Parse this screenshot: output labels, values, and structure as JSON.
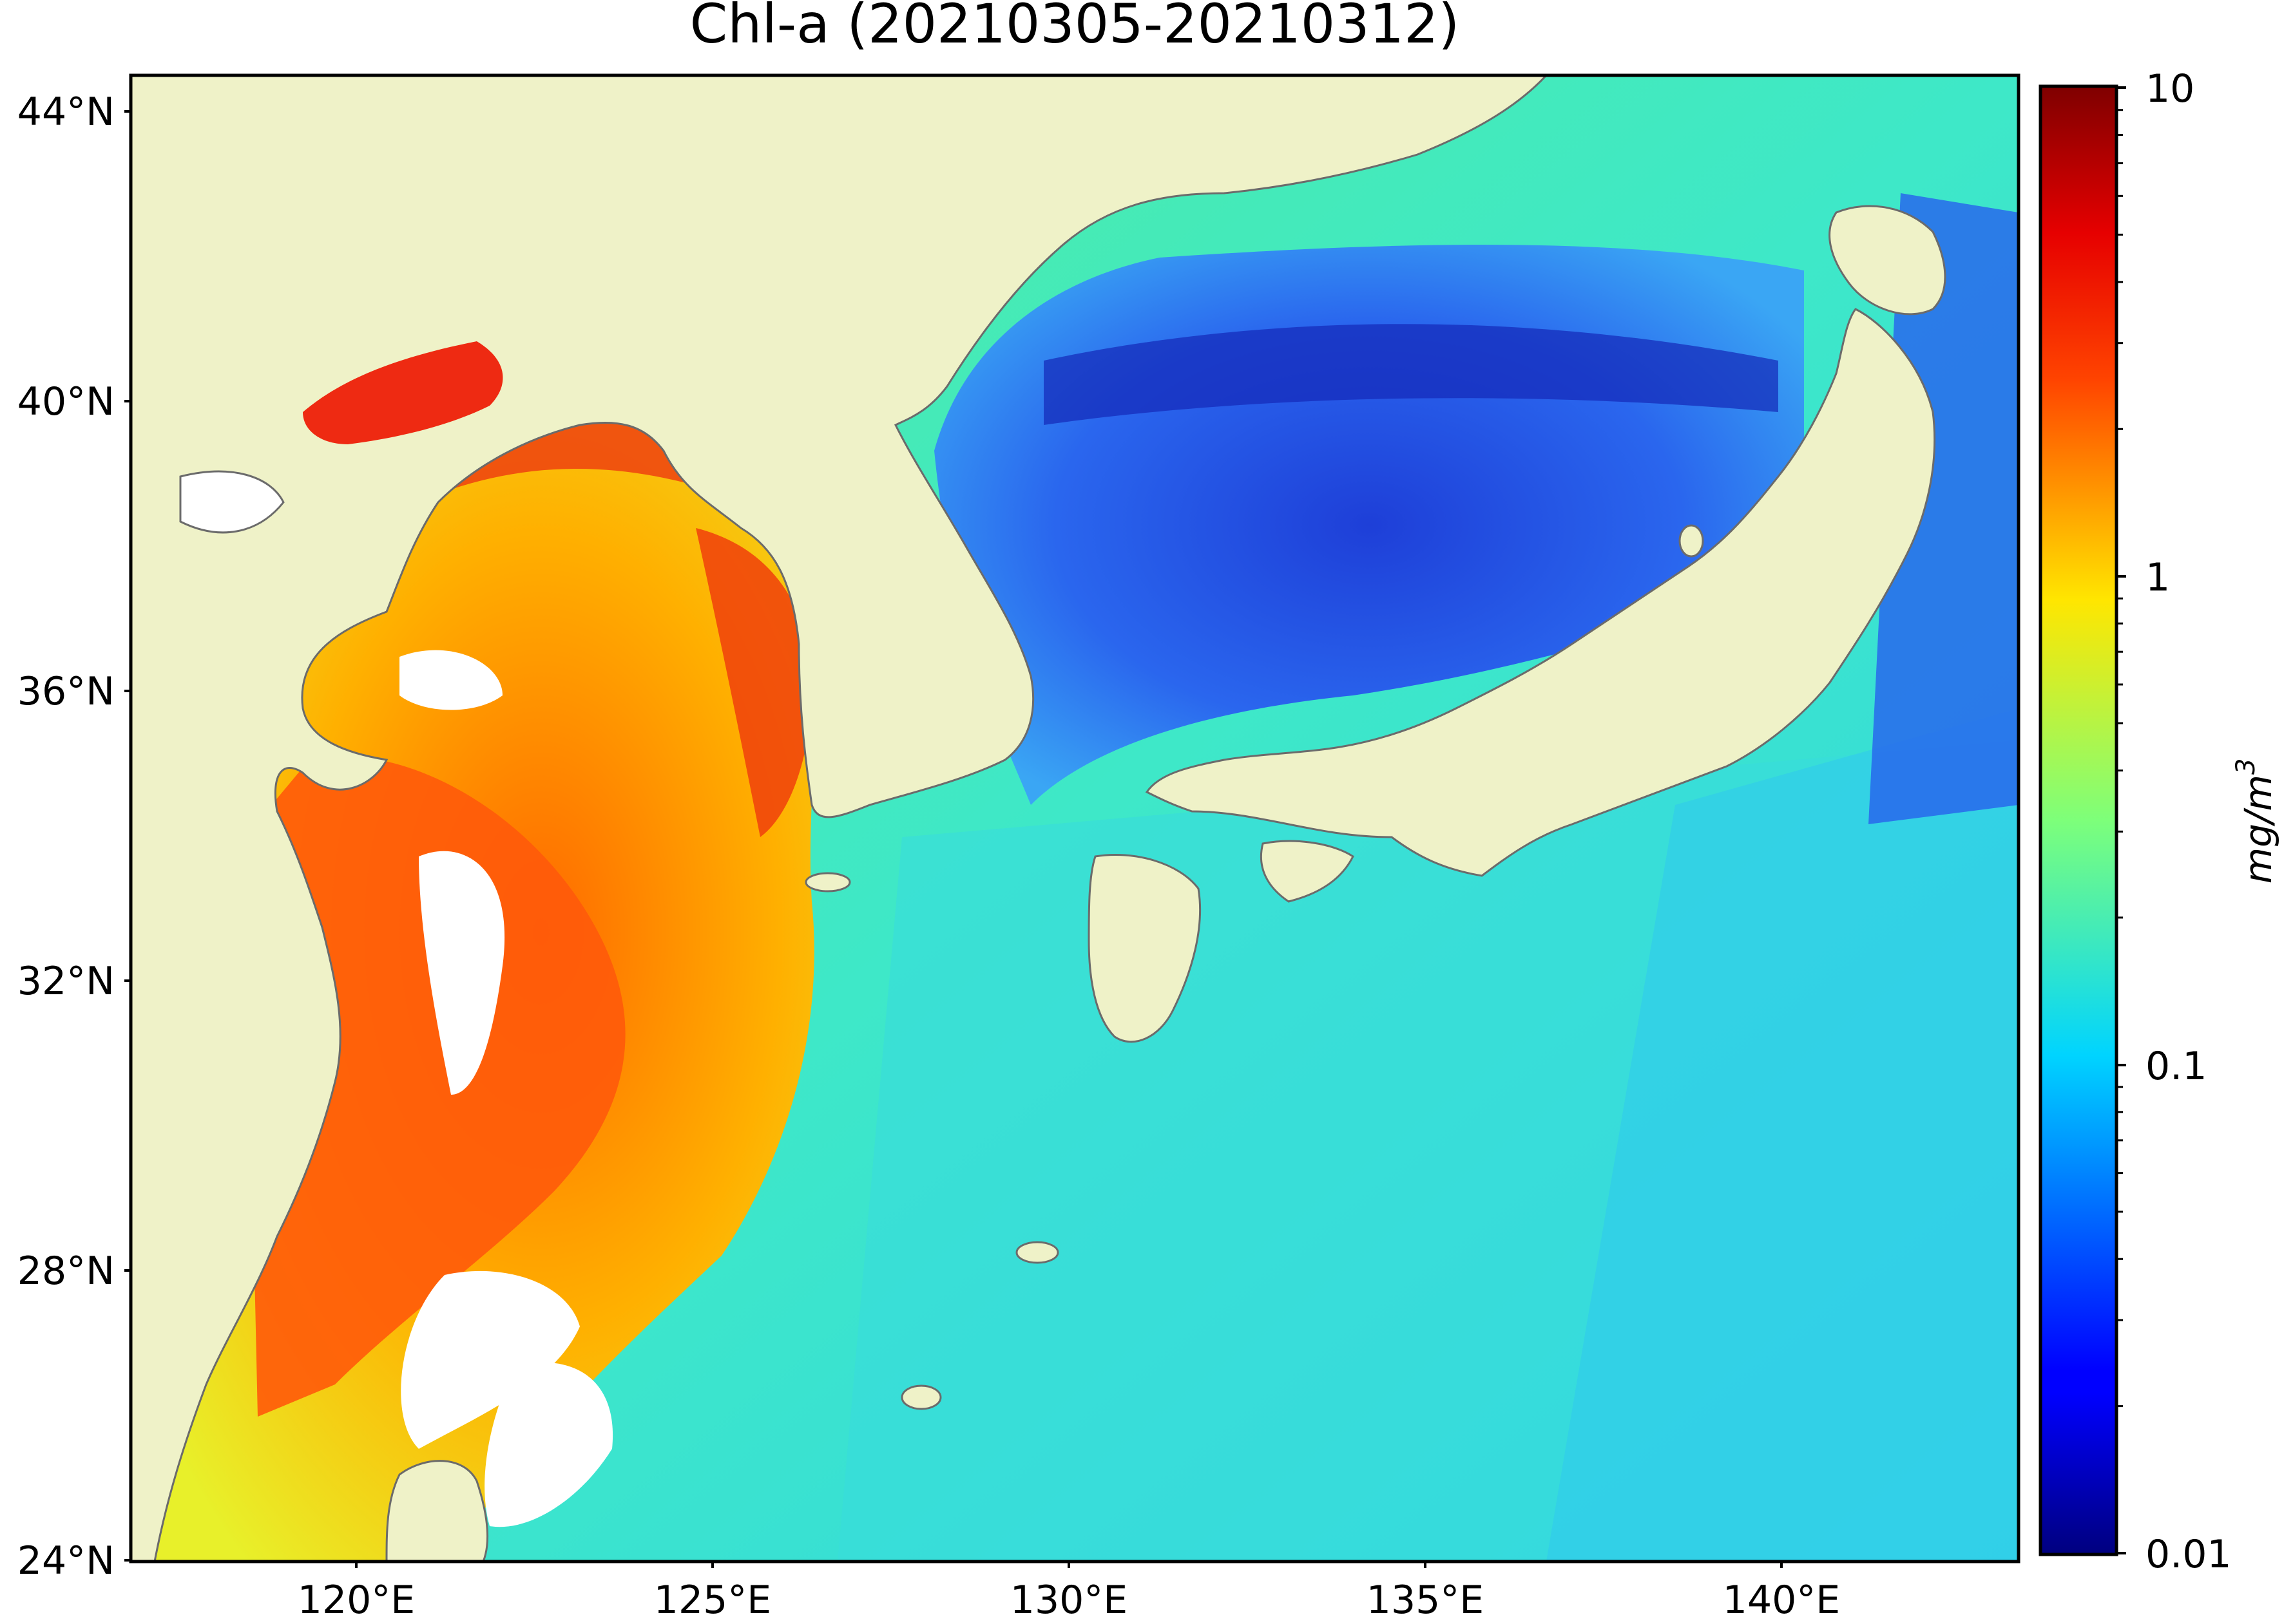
{
  "title": "Chl-a (20210305-20210312)",
  "map": {
    "lon_range": [
      116.5,
      143.0
    ],
    "lat_range": [
      24.0,
      44.5
    ],
    "lat_ticks": [
      {
        "value": 44,
        "label": "44°N"
      },
      {
        "value": 40,
        "label": "40°N"
      },
      {
        "value": 36,
        "label": "36°N"
      },
      {
        "value": 32,
        "label": "32°N"
      },
      {
        "value": 28,
        "label": "28°N"
      },
      {
        "value": 24,
        "label": "24°N"
      }
    ],
    "lon_ticks": [
      {
        "value": 120,
        "label": "120°E"
      },
      {
        "value": 125,
        "label": "125°E"
      },
      {
        "value": 130,
        "label": "130°E"
      },
      {
        "value": 135,
        "label": "135°E"
      },
      {
        "value": 140,
        "label": "140°E"
      }
    ],
    "colors": {
      "land": "#eff2c8",
      "coast": "#6b6b6b",
      "nodata": "#ffffff",
      "ocean_base": "#3ee8c8"
    }
  },
  "colorbar": {
    "label": "mg/m",
    "label_superscript": "3",
    "scale": "log",
    "range": [
      0.01,
      10
    ],
    "ticks": [
      {
        "value": 10,
        "label": "10"
      },
      {
        "value": 1,
        "label": "1"
      },
      {
        "value": 0.1,
        "label": "0.1"
      },
      {
        "value": 0.01,
        "label": "0.01"
      }
    ],
    "colormap": "jet"
  }
}
